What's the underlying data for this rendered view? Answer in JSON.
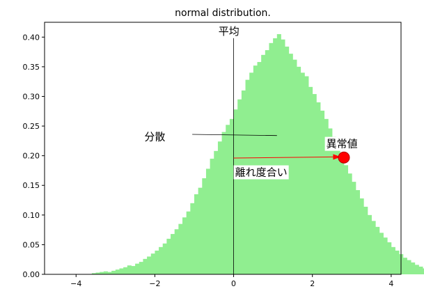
{
  "chart_data": {
    "type": "bar",
    "title": "normal distribution.",
    "xlabel": "",
    "ylabel": "",
    "xlim": [
      -4.8,
      4.25
    ],
    "ylim": [
      0,
      0.425
    ],
    "xticks": [
      -4,
      -2,
      0,
      2,
      4
    ],
    "xtick_labels": [
      "−4",
      "−2",
      "0",
      "2",
      "4"
    ],
    "yticks": [
      0.0,
      0.05,
      0.1,
      0.15,
      0.2,
      0.25,
      0.3,
      0.35,
      0.4
    ],
    "ytick_labels": [
      "0.00",
      "0.05",
      "0.10",
      "0.15",
      "0.20",
      "0.25",
      "0.30",
      "0.35",
      "0.40"
    ],
    "grid": false,
    "bar_color": "#90ee90",
    "histogram": {
      "bin_start": -3.6,
      "bin_width": 0.1,
      "densities": [
        0.002,
        0.003,
        0.004,
        0.005,
        0.004,
        0.006,
        0.008,
        0.01,
        0.012,
        0.015,
        0.014,
        0.018,
        0.021,
        0.026,
        0.03,
        0.035,
        0.04,
        0.046,
        0.052,
        0.06,
        0.068,
        0.076,
        0.085,
        0.096,
        0.106,
        0.12,
        0.135,
        0.146,
        0.162,
        0.178,
        0.195,
        0.208,
        0.224,
        0.24,
        0.252,
        0.262,
        0.278,
        0.295,
        0.31,
        0.328,
        0.34,
        0.352,
        0.358,
        0.37,
        0.378,
        0.39,
        0.398,
        0.405,
        0.396,
        0.384,
        0.372,
        0.362,
        0.35,
        0.34,
        0.334,
        0.316,
        0.304,
        0.29,
        0.276,
        0.262,
        0.246,
        0.232,
        0.214,
        0.198,
        0.184,
        0.17,
        0.156,
        0.142,
        0.128,
        0.114,
        0.1,
        0.09,
        0.08,
        0.07,
        0.062,
        0.054,
        0.046,
        0.04,
        0.034,
        0.028,
        0.024,
        0.02,
        0.016,
        0.013,
        0.01,
        0.008,
        0.006,
        0.005,
        0.004,
        0.003,
        0.002,
        0.002
      ]
    },
    "mean_line": {
      "x": 0.0,
      "y_start": 0.0,
      "y_end": 0.4,
      "color": "#000000"
    },
    "spread_line": {
      "x_start": -1.05,
      "x_end": 1.1,
      "y_start": 0.236,
      "y_end": 0.234,
      "color": "#000000"
    },
    "deviation_arrow": {
      "x_start": 0.0,
      "y_start": 0.196,
      "x_end": 2.72,
      "y_end": 0.198,
      "color": "#ff0000"
    },
    "outlier_point": {
      "x": 2.8,
      "y": 0.197,
      "color": "#ff0000"
    },
    "annotations": [
      {
        "text": "平均",
        "x": -0.12,
        "y": 0.41,
        "name": "mean-label"
      },
      {
        "text": "分散",
        "x": -2.0,
        "y": 0.232,
        "name": "variance-label"
      },
      {
        "text": "異常値",
        "x": 2.75,
        "y": 0.22,
        "name": "outlier-label"
      },
      {
        "text": "離れ度合い",
        "x": 0.7,
        "y": 0.172,
        "name": "deviation-label"
      }
    ]
  }
}
